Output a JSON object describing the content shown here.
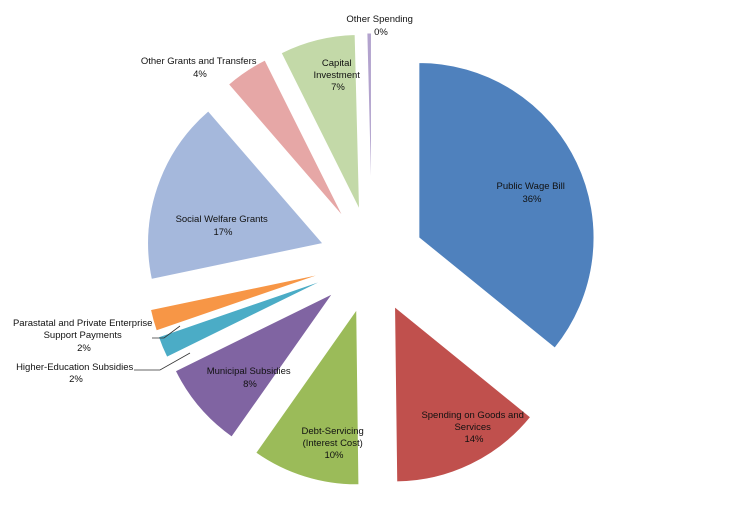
{
  "chart_data": {
    "type": "pie",
    "title": "",
    "exploded": true,
    "legend": "none",
    "slices": [
      {
        "label": "Public Wage Bill",
        "value_label": "36%",
        "value": 36,
        "color": "#4F81BD"
      },
      {
        "label": "Spending on Goods and Services",
        "value_label": "14%",
        "value": 14,
        "color": "#C0504D"
      },
      {
        "label": "Debt-Servicing (Interest Cost)",
        "value_label": "10%",
        "value": 10,
        "color": "#9BBB59"
      },
      {
        "label": "Municipal Subsidies",
        "value_label": "8%",
        "value": 8,
        "color": "#8064A2"
      },
      {
        "label": "Higher-Education Subsidies",
        "value_label": "2%",
        "value": 2,
        "color": "#4BACC6"
      },
      {
        "label": "Parastatal and Private Enterprise Support Payments",
        "value_label": "2%",
        "value": 2,
        "color": "#F79646"
      },
      {
        "label": "Social Welfare Grants",
        "value_label": "17%",
        "value": 17,
        "color": "#A5B8DC"
      },
      {
        "label": "Other Grants and Transfers",
        "value_label": "4%",
        "value": 4,
        "color": "#E6A7A6"
      },
      {
        "label": "Capital Investment",
        "value_label": "7%",
        "value": 7,
        "color": "#C3D9A8"
      },
      {
        "label": "Other Spending",
        "value_label": "0%",
        "value": 0.4,
        "color": "#B3A3CE"
      }
    ]
  }
}
